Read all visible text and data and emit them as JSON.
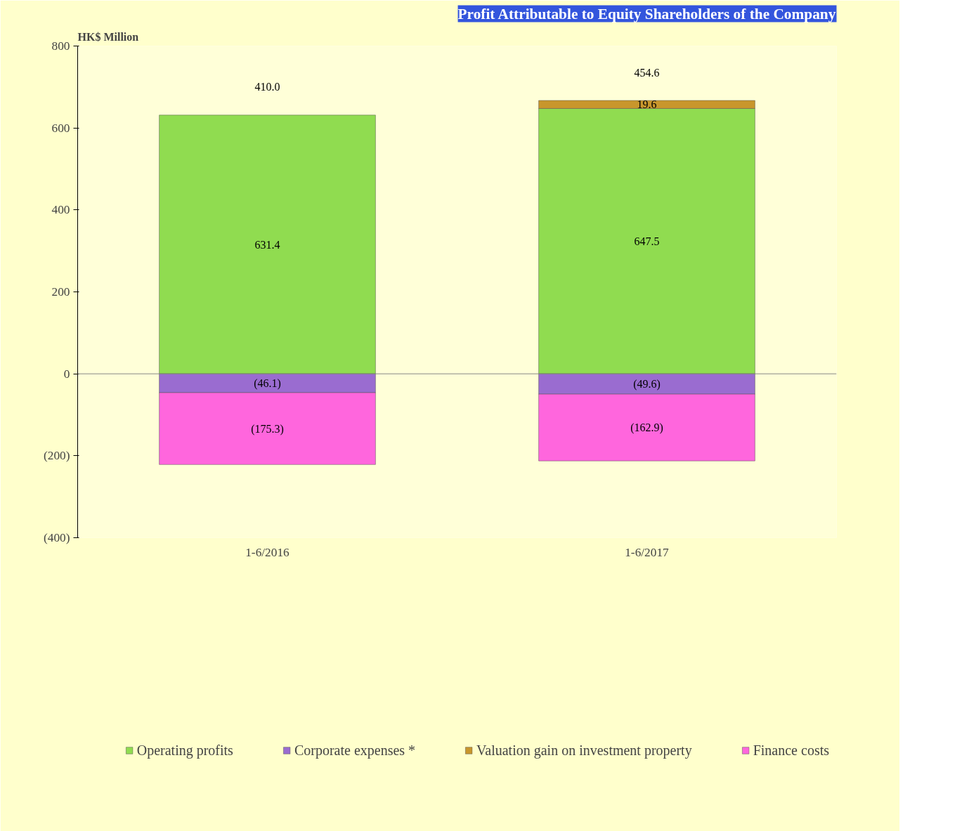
{
  "chart_data": {
    "type": "bar",
    "title": "Profit Attributable to Equity Shareholders of the Company",
    "ylabel": "HK$ Million",
    "categories": [
      "1-6/2016",
      "1-6/2017"
    ],
    "stacked": true,
    "series": [
      {
        "name": "Operating profits",
        "color": "#90dc50",
        "values": [
          631.4,
          647.5
        ],
        "value_labels": [
          "631.4",
          "647.5"
        ]
      },
      {
        "name": "Corporate expenses *",
        "color": "#9a6cd0",
        "values": [
          -46.1,
          -49.6
        ],
        "value_labels": [
          "(46.1)",
          "(49.6)"
        ]
      },
      {
        "name": "Valuation gain on investment property",
        "color": "#c8962c",
        "values": [
          null,
          19.6
        ],
        "value_labels": [
          null,
          "19.6"
        ]
      },
      {
        "name": "Finance costs",
        "color": "#ff66dd",
        "values": [
          -175.3,
          -162.9
        ],
        "value_labels": [
          "(175.3)",
          "(162.9)"
        ]
      }
    ],
    "totals": [
      "410.0",
      "454.6"
    ],
    "ylim": [
      -400,
      800
    ],
    "yticks": [
      {
        "value": -400,
        "label": "(400)"
      },
      {
        "value": -200,
        "label": "(200)"
      },
      0,
      200,
      400,
      600,
      800
    ],
    "ref_lines": [
      {
        "axis": "y",
        "value": 0,
        "color": "#888888"
      }
    ],
    "grid": false,
    "legend": "bottom"
  }
}
